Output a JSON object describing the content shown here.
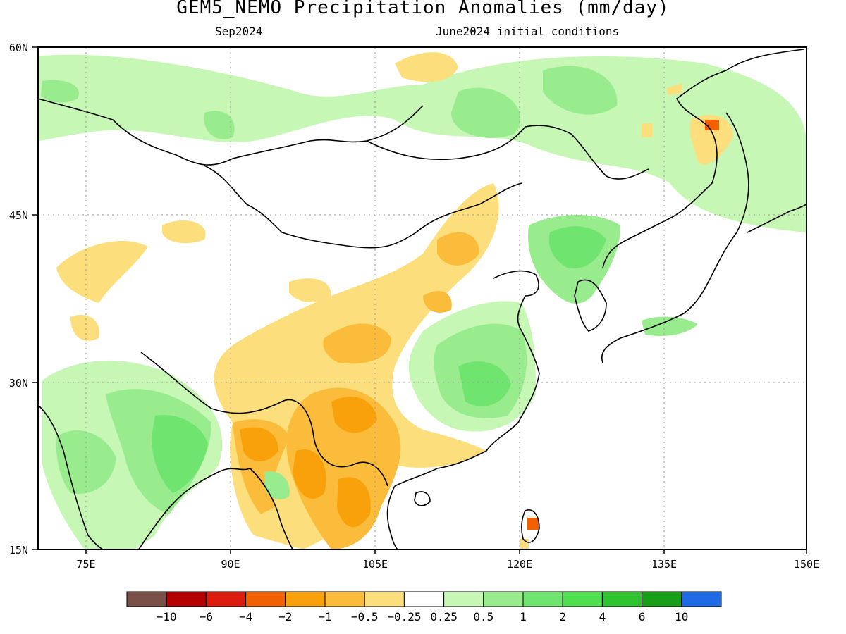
{
  "title": "GEM5_NEMO Precipitation Anomalies (mm/day)",
  "subtitle_left": "Sep2024",
  "subtitle_right": "June2024 initial conditions",
  "lat_labels": [
    "60N",
    "45N",
    "30N",
    "15N"
  ],
  "lon_labels": [
    "75E",
    "90E",
    "105E",
    "120E",
    "135E",
    "150E"
  ],
  "colorbar": {
    "colors": [
      "#7a5148",
      "#b40000",
      "#dc1c0e",
      "#f26000",
      "#f8a10b",
      "#fbbc3b",
      "#fcdf7c",
      "#ffffff",
      "#c6f7b4",
      "#98ec8e",
      "#6fe46e",
      "#4ee04e",
      "#2fc42f",
      "#17a017",
      "#1f6be5"
    ],
    "tick_labels": [
      "-10",
      "-6",
      "-4",
      "-2",
      "-1",
      "-0.5",
      "-0.25",
      "0.25",
      "0.5",
      "1",
      "2",
      "4",
      "6",
      "10"
    ]
  }
}
